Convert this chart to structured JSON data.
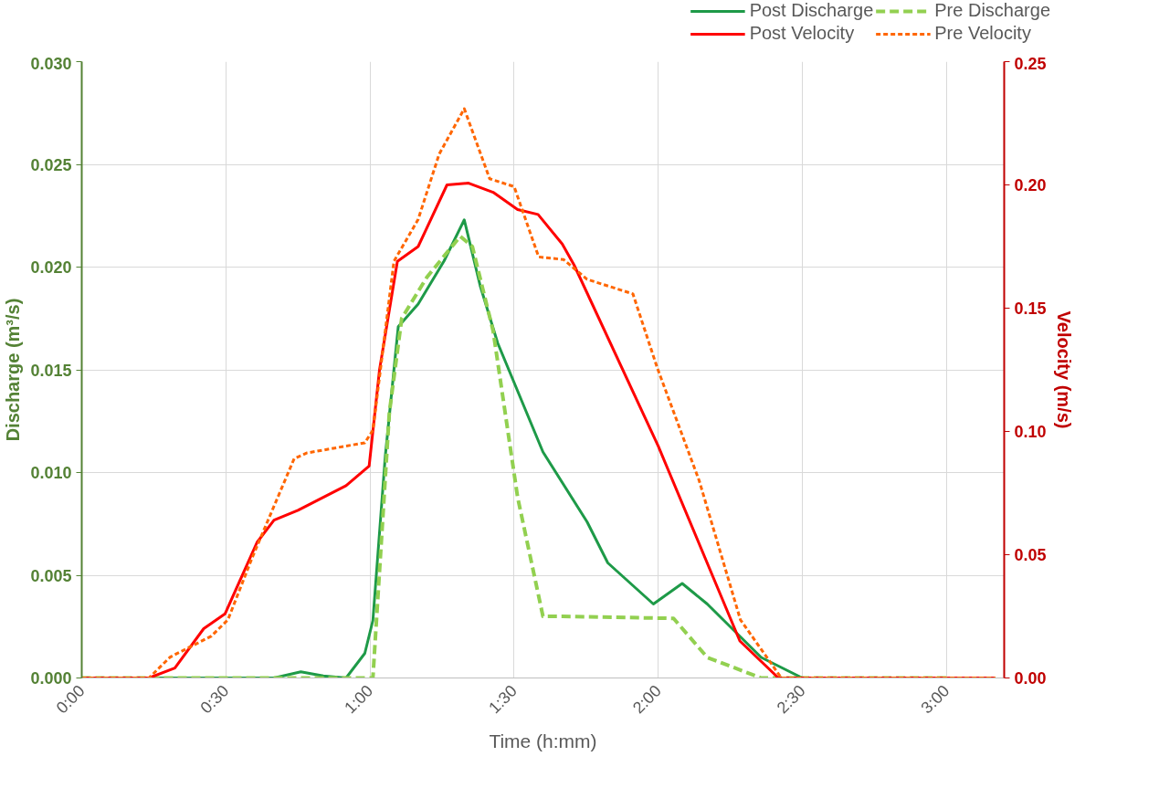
{
  "chart_data": {
    "type": "line",
    "xlabel": "Time (h:mm)",
    "ylabel": "Discharge (m³/s)",
    "y2label": "Velocity (m/s)",
    "xlim": [
      0,
      3.2
    ],
    "xticks": [
      {
        "value": 0,
        "label": "0:00"
      },
      {
        "value": 0.5,
        "label": "0:30"
      },
      {
        "value": 1,
        "label": "1:00"
      },
      {
        "value": 1.5,
        "label": "1:30"
      },
      {
        "value": 2,
        "label": "2:00"
      },
      {
        "value": 2.5,
        "label": "2:30"
      },
      {
        "value": 3,
        "label": "3:00"
      }
    ],
    "ylim": [
      0,
      0.03
    ],
    "yticks": [
      {
        "value": 0,
        "label": "0.000"
      },
      {
        "value": 0.005,
        "label": "0.005"
      },
      {
        "value": 0.01,
        "label": "0.010"
      },
      {
        "value": 0.015,
        "label": "0.015"
      },
      {
        "value": 0.02,
        "label": "0.020"
      },
      {
        "value": 0.025,
        "label": "0.025"
      },
      {
        "value": 0.03,
        "label": "0.030"
      }
    ],
    "y2lim": [
      0,
      0.25
    ],
    "y2ticks": [
      {
        "value": 0,
        "label": "0.00"
      },
      {
        "value": 0.05,
        "label": "0.05"
      },
      {
        "value": 0.1,
        "label": "0.10"
      },
      {
        "value": 0.15,
        "label": "0.15"
      },
      {
        "value": 0.2,
        "label": "0.20"
      },
      {
        "value": 0.25,
        "label": "0.25"
      }
    ],
    "grid": true,
    "legend": "top right",
    "series": [
      {
        "name": "Post Discharge",
        "color": "#1e9a48",
        "line_style": "solid",
        "x": [
          0,
          0.667,
          0.76,
          0.838,
          0.917,
          0.982,
          1.01,
          1.053,
          1.098,
          1.167,
          1.257,
          1.327,
          1.382,
          1.443,
          1.6,
          1.753,
          1.825,
          1.983,
          2.083,
          2.17,
          2.357,
          2.5,
          3.0
        ],
        "values": [
          0,
          0,
          0.0003,
          0.0001,
          0,
          0.0012,
          0.0028,
          0.0108,
          0.0171,
          0.0182,
          0.0203,
          0.0223,
          0.0191,
          0.0163,
          0.011,
          0.0076,
          0.0056,
          0.0036,
          0.0046,
          0.0036,
          0.001,
          0,
          0
        ]
      },
      {
        "name": "Pre Discharge",
        "color": "#92d050",
        "line_style": "dashed",
        "x": [
          0,
          0.967,
          1.01,
          1.067,
          1.11,
          1.197,
          1.313,
          1.355,
          1.427,
          1.512,
          1.6,
          1.667,
          2.053,
          2.17,
          2.357,
          3.0
        ],
        "values": [
          0,
          0,
          0,
          0.0129,
          0.0175,
          0.0195,
          0.0215,
          0.021,
          0.0169,
          0.0088,
          0.003,
          0.003,
          0.0029,
          0.001,
          0,
          0
        ]
      },
      {
        "name": "Post Velocity",
        "color": "#ff0000",
        "line_style": "solid",
        "axis": "y2",
        "x": [
          0,
          0.233,
          0.323,
          0.423,
          0.497,
          0.608,
          0.667,
          0.75,
          0.917,
          0.997,
          1.033,
          1.095,
          1.167,
          1.267,
          1.342,
          1.427,
          1.512,
          1.583,
          1.667,
          1.708,
          2.0,
          2.283,
          2.417,
          3.17
        ],
        "values": [
          0,
          0,
          0.004,
          0.02,
          0.026,
          0.055,
          0.064,
          0.068,
          0.078,
          0.086,
          0.125,
          0.169,
          0.175,
          0.2,
          0.2007,
          0.197,
          0.19,
          0.188,
          0.176,
          0.1675,
          0.094,
          0.015,
          0,
          0
        ]
      },
      {
        "name": "Pre Velocity",
        "color": "#ff6600",
        "line_style": "dotted",
        "axis": "y2",
        "x": [
          0,
          0.233,
          0.307,
          0.45,
          0.507,
          0.592,
          0.737,
          0.782,
          0.982,
          1.01,
          1.083,
          1.167,
          1.24,
          1.327,
          1.415,
          1.5,
          1.585,
          1.672,
          1.753,
          1.912,
          1.997,
          2.142,
          2.285,
          2.427,
          3.17
        ],
        "values": [
          0,
          0,
          0.0085,
          0.017,
          0.0236,
          0.049,
          0.089,
          0.0913,
          0.0954,
          0.1005,
          0.169,
          0.186,
          0.2125,
          0.2309,
          0.2025,
          0.1993,
          0.1708,
          0.1697,
          0.1617,
          0.1558,
          0.1256,
          0.08,
          0.0236,
          0,
          0
        ]
      }
    ]
  }
}
